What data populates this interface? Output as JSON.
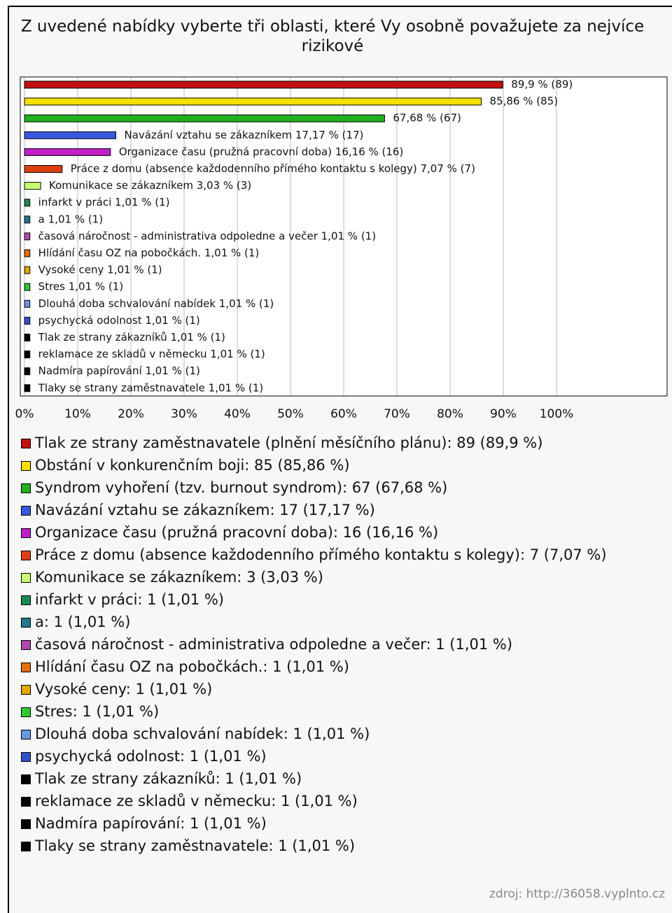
{
  "chart_data": {
    "type": "barh",
    "title": "Z uvedené nabídky vyberte tři oblasti, které Vy osobně považujete za nejvíce rizikové",
    "values": [
      89.9,
      85.86,
      67.68,
      17.17,
      16.16,
      7.07,
      3.03,
      1.01,
      1.01,
      1.01,
      1.01,
      1.01,
      1.01,
      1.01,
      1.01,
      1.01,
      1.01,
      1.01,
      1.01
    ],
    "value_labels": [
      "89,9 % (89)",
      "85,86 % (85)",
      "67,68 % (67)",
      "Navázání vztahu se zákazníkem 17,17 % (17)",
      "Organizace času (pružná pracovní doba) 16,16 % (16)",
      "Práce z domu (absence každodenního přímého kontaktu s kolegy) 7,07 % (7)",
      "Komunikace se zákazníkem 3,03 % (3)",
      "infarkt v práci 1,01 % (1)",
      "a 1,01 % (1)",
      "časová náročnost - administrativa odpoledne a večer 1,01 % (1)",
      "Hlídání času OZ na pobočkách. 1,01 % (1)",
      "Vysoké ceny 1,01 % (1)",
      "Stres 1,01 % (1)",
      "Dlouhá doba schvalování nabídek 1,01 % (1)",
      "psychycká odolnost 1,01 % (1)",
      "Tlak ze strany zákazníků 1,01 % (1)",
      "reklamace ze skladů v německu 1,01 % (1)",
      "Nadmíra papírování 1,01 % (1)",
      "Tlaky se strany zaměstnavatele 1,01 % (1)"
    ],
    "legend_labels": [
      "Tlak ze strany zaměstnavatele (plnění měsíčního plánu): 89 (89,9 %)",
      "Obstání v konkurenčním boji: 85 (85,86 %)",
      "Syndrom vyhoření (tzv. burnout syndrom): 67 (67,68 %)",
      "Navázání vztahu se zákazníkem: 17 (17,17 %)",
      "Organizace času (pružná pracovní doba): 16 (16,16 %)",
      "Práce z domu (absence každodenního přímého kontaktu s kolegy): 7 (7,07 %)",
      "Komunikace se zákazníkem: 3 (3,03 %)",
      "infarkt v práci: 1 (1,01 %)",
      "a: 1 (1,01 %)",
      "časová náročnost - administrativa odpoledne a večer: 1 (1,01 %)",
      "Hlídání času OZ na pobočkách.: 1 (1,01 %)",
      "Vysoké ceny: 1 (1,01 %)",
      "Stres: 1 (1,01 %)",
      "Dlouhá doba schvalování nabídek: 1 (1,01 %)",
      "psychycká odolnost: 1 (1,01 %)",
      "Tlak ze strany zákazníků: 1 (1,01 %)",
      "reklamace ze skladů v německu: 1 (1,01 %)",
      "Nadmíra papírování: 1 (1,01 %)",
      "Tlaky se strany zaměstnavatele: 1 (1,01 %)"
    ],
    "colors": [
      "#c01010",
      "#f5e000",
      "#20b020",
      "#3858e0",
      "#c020c8",
      "#e04010",
      "#c8ff70",
      "#1a8a50",
      "#207888",
      "#b048b0",
      "#e07010",
      "#e0a800",
      "#30c830",
      "#6898e0",
      "#3050c8",
      "#000000",
      "#000000",
      "#000000",
      "#000000"
    ],
    "xlim": [
      0,
      100
    ],
    "xticks": [
      {
        "value": 0,
        "label": "0%"
      },
      {
        "value": 10,
        "label": "10%"
      },
      {
        "value": 20,
        "label": "20%"
      },
      {
        "value": 30,
        "label": "30%"
      },
      {
        "value": 40,
        "label": "40%"
      },
      {
        "value": 50,
        "label": "50%"
      },
      {
        "value": 60,
        "label": "60%"
      },
      {
        "value": 70,
        "label": "70%"
      },
      {
        "value": 80,
        "label": "80%"
      },
      {
        "value": 90,
        "label": "90%"
      },
      {
        "value": 100,
        "label": "100%"
      }
    ],
    "grid": true,
    "source": "zdroj: http://36058.vyplnto.cz"
  }
}
